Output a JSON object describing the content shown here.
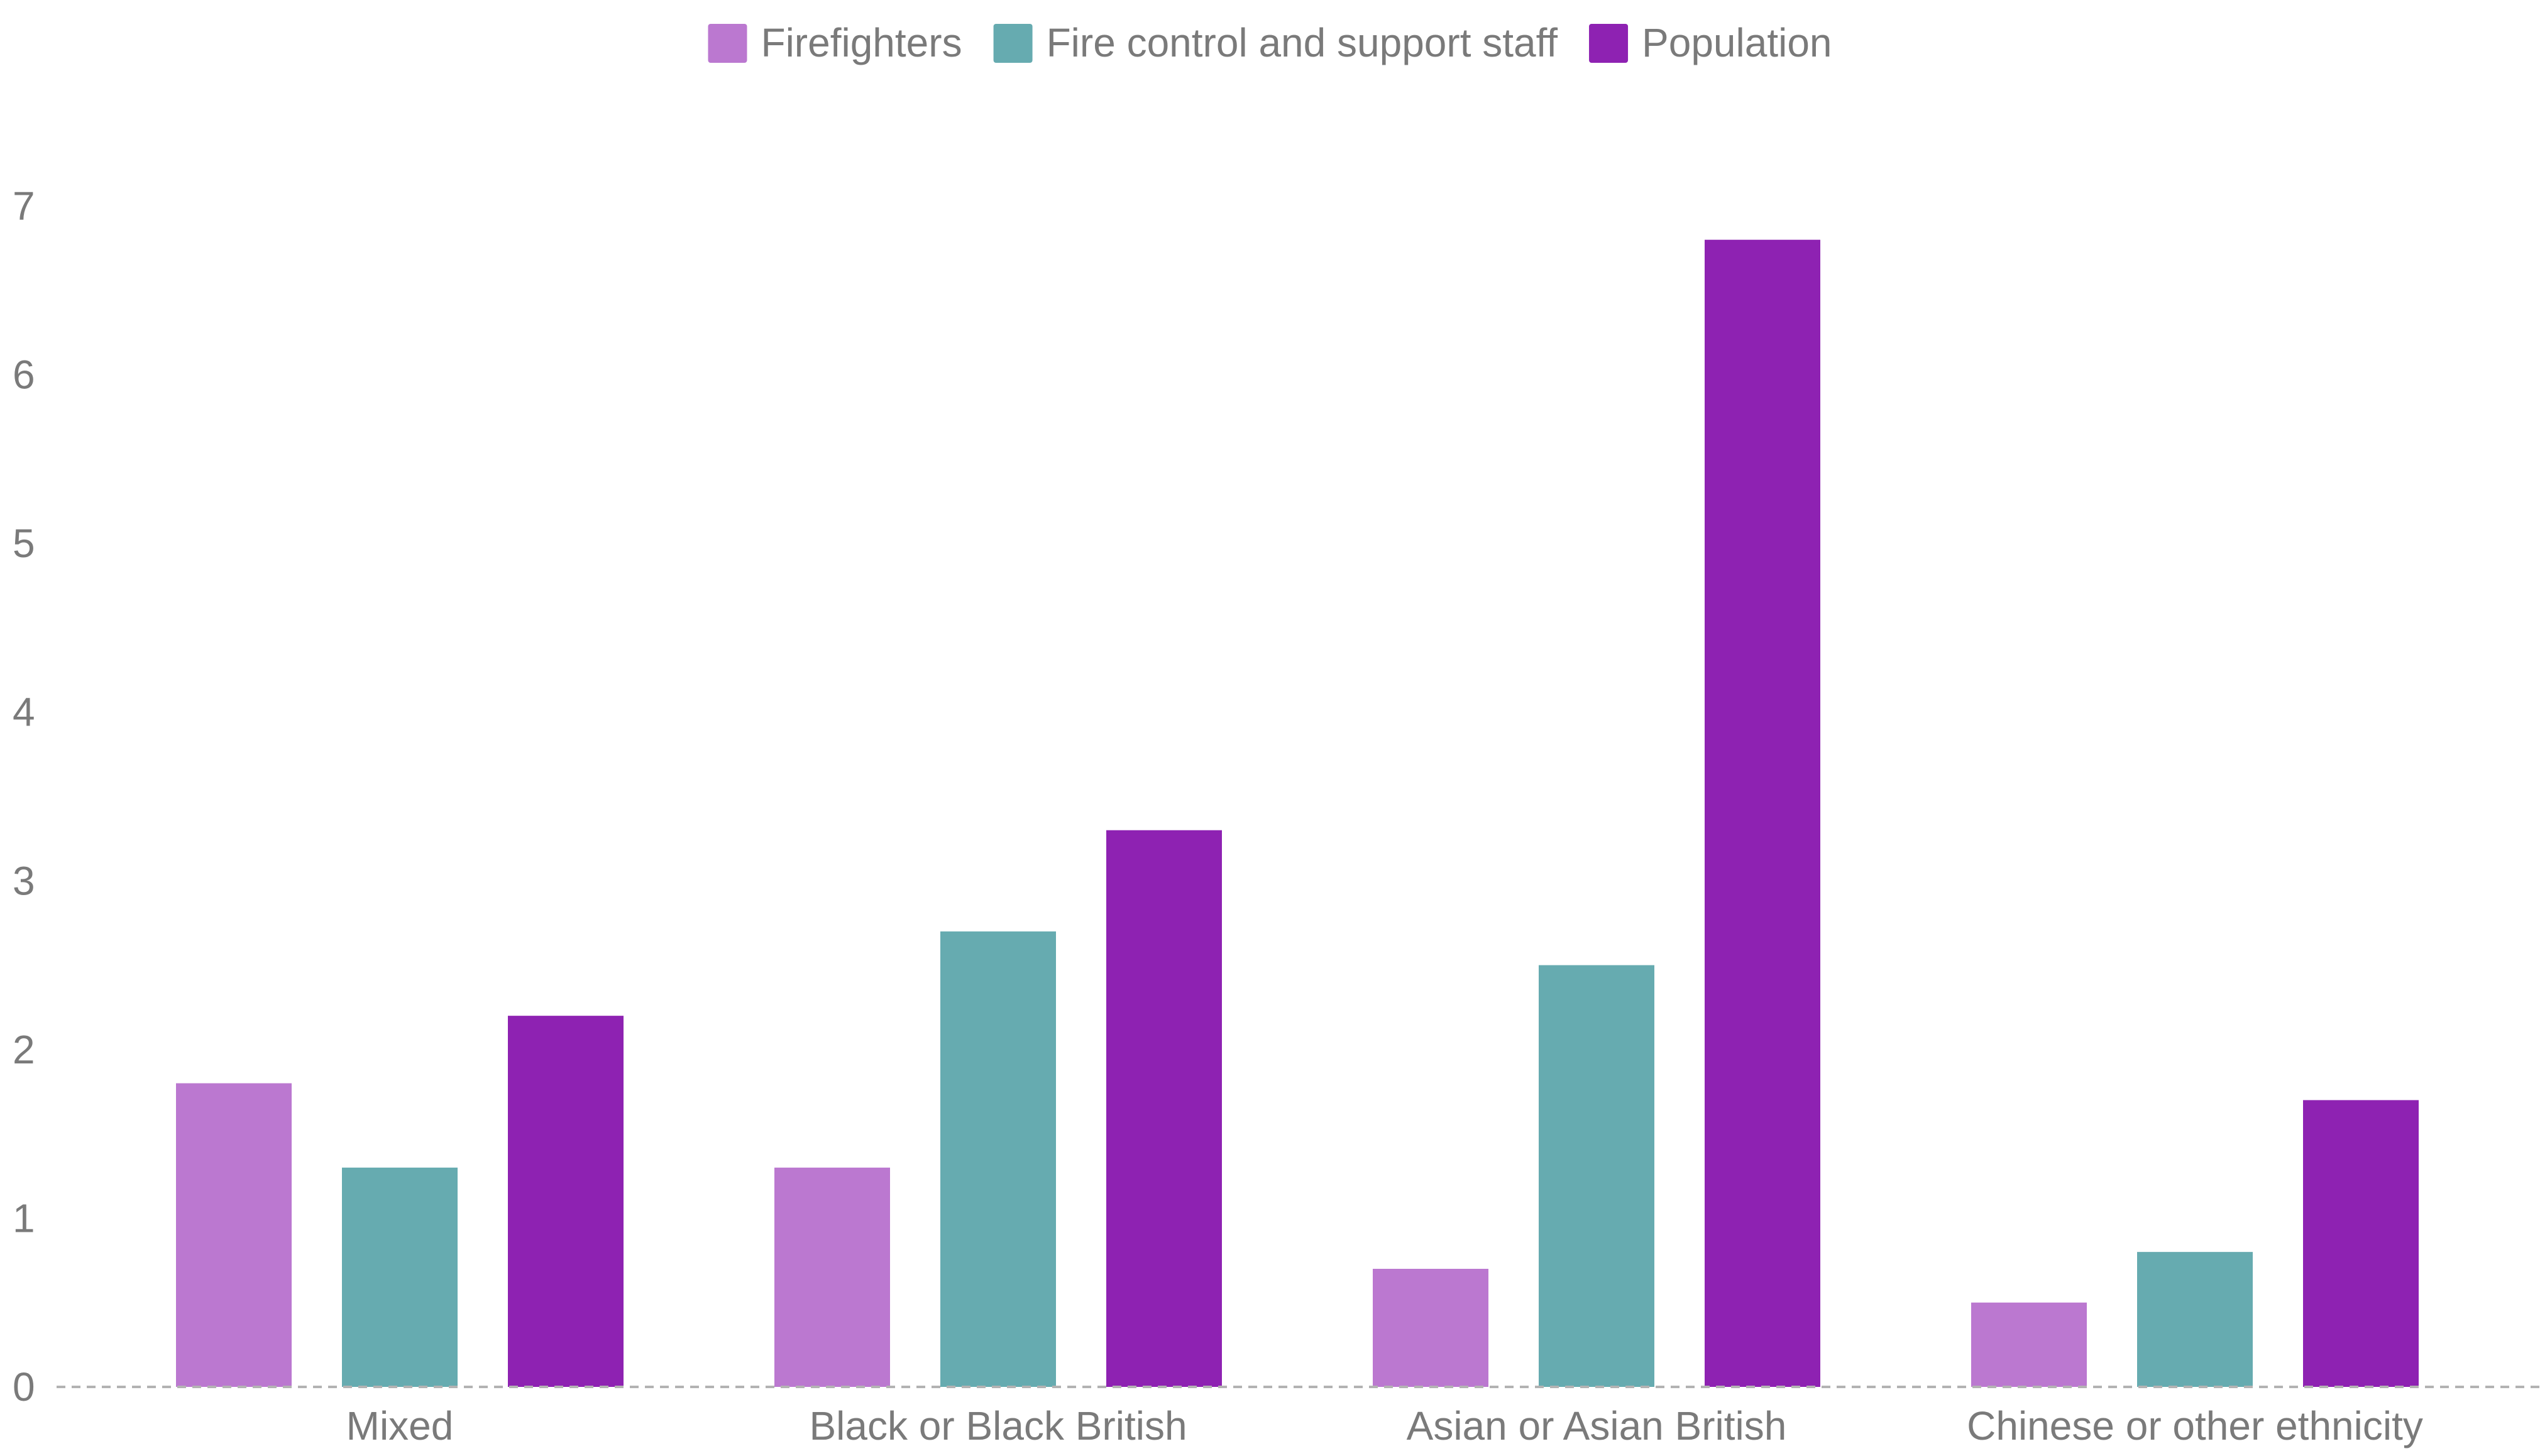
{
  "chart_data": {
    "type": "bar",
    "categories": [
      "Mixed",
      "Black or Black British",
      "Asian or Asian British",
      "Chinese or other ethnicity"
    ],
    "series": [
      {
        "name": "Firefighters",
        "color": "#bb78d0",
        "values": [
          1.8,
          1.3,
          0.7,
          0.5
        ]
      },
      {
        "name": "Fire control and support staff",
        "color": "#66abb0",
        "values": [
          1.3,
          2.7,
          2.5,
          0.8
        ]
      },
      {
        "name": "Population",
        "color": "#8e22b2",
        "values": [
          2.2,
          3.3,
          6.8,
          1.7
        ]
      }
    ],
    "title": "",
    "xlabel": "",
    "ylabel": "",
    "ylim": [
      0,
      7
    ],
    "yticks": [
      "0",
      "1",
      "2",
      "3",
      "4",
      "5",
      "6",
      "7"
    ],
    "grid": false,
    "baseline": "dashed",
    "legend_position": "top-center"
  }
}
